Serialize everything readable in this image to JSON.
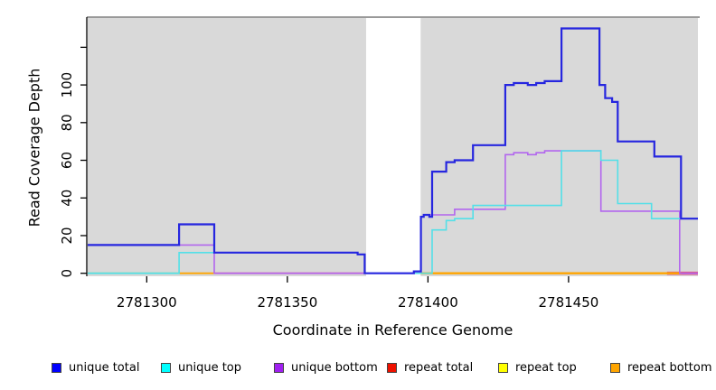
{
  "figure": {
    "background": "#ffffff",
    "plot_background": "#d9d9d9",
    "masked_band_color": "#ffffff",
    "top_border_color": "#999999",
    "axis_color": "#000000"
  },
  "chart_data": {
    "type": "line",
    "step": true,
    "title": "",
    "xlabel": "Coordinate in Reference Genome",
    "ylabel": "Read Coverage Depth",
    "xlim": [
      2781279,
      2781496
    ],
    "ylim": [
      0,
      136
    ],
    "grid": false,
    "legend_position": "bottom",
    "x_ticks": [
      {
        "v": 2781300,
        "label": "2781300"
      },
      {
        "v": 2781350,
        "label": "2781350"
      },
      {
        "v": 2781400,
        "label": "2781400"
      },
      {
        "v": 2781450,
        "label": "2781450"
      }
    ],
    "y_ticks": [
      {
        "v": 0,
        "label": "0"
      },
      {
        "v": 20,
        "label": "20"
      },
      {
        "v": 40,
        "label": "40"
      },
      {
        "v": 60,
        "label": "60"
      },
      {
        "v": 80,
        "label": "80"
      },
      {
        "v": 100,
        "label": "100"
      },
      {
        "v": 120,
        "label": ""
      }
    ],
    "masked_region": {
      "x1": 2781378,
      "x2": 2781397.4
    },
    "series": [
      {
        "name": "unique bottom",
        "color": "#b266ee",
        "width": 1.6,
        "points": [
          [
            2781279,
            15
          ],
          [
            2781324,
            0
          ],
          [
            2781397.5,
            30
          ],
          [
            2781398.5,
            31
          ],
          [
            2781409.5,
            34
          ],
          [
            2781427.5,
            63
          ],
          [
            2781430.5,
            64
          ],
          [
            2781435.5,
            63
          ],
          [
            2781438.5,
            64
          ],
          [
            2781441.5,
            65
          ],
          [
            2781461.5,
            33
          ],
          [
            2781489.5,
            0
          ]
        ]
      },
      {
        "name": "unique top",
        "color": "#53e0e8",
        "width": 1.6,
        "points": [
          [
            2781279,
            0
          ],
          [
            2781311.5,
            11
          ],
          [
            2781375,
            10
          ],
          [
            2781377.5,
            0
          ],
          [
            2781401.5,
            23
          ],
          [
            2781406.5,
            28
          ],
          [
            2781409.5,
            29
          ],
          [
            2781416,
            36
          ],
          [
            2781447.5,
            65
          ],
          [
            2781461.5,
            60
          ],
          [
            2781467.5,
            37
          ],
          [
            2781479.5,
            29
          ]
        ]
      },
      {
        "name": "unique total",
        "color": "#2626df",
        "width": 2.2,
        "points": [
          [
            2781279,
            15
          ],
          [
            2781311.5,
            26
          ],
          [
            2781324,
            11
          ],
          [
            2781375,
            10
          ],
          [
            2781377.5,
            0
          ],
          [
            2781395,
            1
          ],
          [
            2781397.5,
            30
          ],
          [
            2781398.5,
            31
          ],
          [
            2781400.5,
            30
          ],
          [
            2781401.5,
            54
          ],
          [
            2781406.5,
            59
          ],
          [
            2781409.5,
            60
          ],
          [
            2781416,
            68
          ],
          [
            2781427.5,
            100
          ],
          [
            2781430.5,
            101
          ],
          [
            2781435.5,
            100
          ],
          [
            2781438.5,
            101
          ],
          [
            2781441.5,
            102
          ],
          [
            2781447.5,
            130
          ],
          [
            2781461,
            100
          ],
          [
            2781463,
            93
          ],
          [
            2781465.5,
            91
          ],
          [
            2781467.5,
            70
          ],
          [
            2781480.5,
            62
          ],
          [
            2781490,
            29
          ]
        ]
      },
      {
        "name": "repeat total",
        "color": "#e60000",
        "width": 1.6,
        "points": [
          [
            2781279,
            0
          ]
        ]
      },
      {
        "name": "repeat top",
        "color": "#ffff00",
        "width": 1.6,
        "points": [
          [
            2781279,
            0
          ]
        ]
      },
      {
        "name": "repeat bottom",
        "color": "#ffa500",
        "width": 1.6,
        "points": [
          [
            2781279,
            0
          ]
        ]
      }
    ],
    "zero_line_segments": [
      {
        "x1": 2781279,
        "x2": 2781311.5,
        "color": "#90d794",
        "width": 1.8
      },
      {
        "x1": 2781311.5,
        "x2": 2781324.5,
        "color": "#ffa500",
        "width": 1.8
      },
      {
        "x1": 2781324.5,
        "x2": 2781377.5,
        "color": "#e05a85",
        "width": 1.8
      },
      {
        "x1": 2781485,
        "x2": 2781496,
        "color": "#e05a85",
        "width": 3.6
      },
      {
        "x1": 2781397.4,
        "x2": 2781490,
        "color": "#ffa500",
        "width": 2.4
      }
    ]
  },
  "legend": {
    "items": [
      {
        "label": "unique total",
        "color": "#0000ff"
      },
      {
        "label": "unique top",
        "color": "#00ffff"
      },
      {
        "label": "unique bottom",
        "color": "#a020f0"
      },
      {
        "label": "repeat total",
        "color": "#ee1100"
      },
      {
        "label": "repeat top",
        "color": "#ffff00"
      },
      {
        "label": "repeat bottom",
        "color": "#ffa500"
      }
    ]
  }
}
